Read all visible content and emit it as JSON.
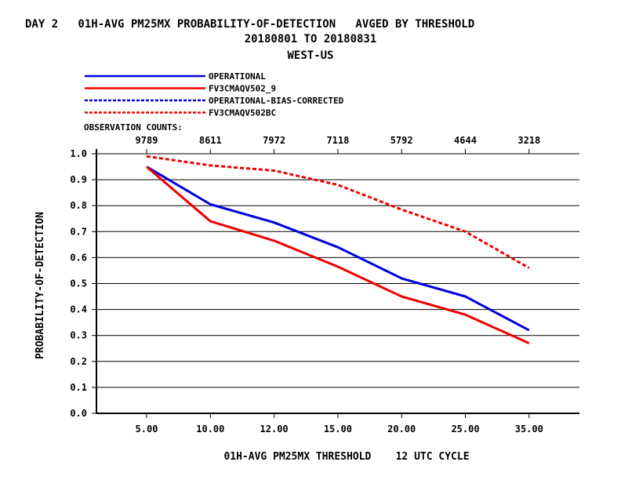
{
  "chart_data": {
    "type": "line",
    "title_lines": [
      "DAY 2   01H-AVG PM25MX PROBABILITY-OF-DETECTION   AVGED BY THRESHOLD",
      "20180801 TO 20180831",
      "WEST-US"
    ],
    "xlabel": "01H-AVG PM25MX THRESHOLD    12 UTC CYCLE",
    "ylabel": "PROBABILITY-OF-DETECTION",
    "categories": [
      "5.00",
      "10.00",
      "12.00",
      "15.00",
      "20.00",
      "25.00",
      "35.00"
    ],
    "yticks": [
      "0.0",
      "0.1",
      "0.2",
      "0.3",
      "0.4",
      "0.5",
      "0.6",
      "0.7",
      "0.8",
      "0.9",
      "1.0"
    ],
    "ylim": [
      0,
      1.0
    ],
    "grid": true,
    "legend_position": "top-left",
    "observation_counts_label": "OBSERVATION COUNTS:",
    "observation_counts": [
      "9789",
      "8611",
      "7972",
      "7118",
      "5792",
      "4644",
      "3218"
    ],
    "series": [
      {
        "name": "OPERATIONAL",
        "color": "#0000dd",
        "dash": "solid",
        "values": [
          0.95,
          0.805,
          0.735,
          0.64,
          0.52,
          0.45,
          0.32
        ]
      },
      {
        "name": "FV3CMAQV502_9",
        "color": "#ee0000",
        "dash": "solid",
        "values": [
          0.95,
          0.74,
          0.665,
          0.565,
          0.45,
          0.38,
          0.27
        ]
      },
      {
        "name": "OPERATIONAL-BIAS-CORRECTED",
        "color": "#0000dd",
        "dash": "dashed",
        "values": [
          null,
          null,
          null,
          null,
          null,
          null,
          null
        ]
      },
      {
        "name": "FV3CMAQV502BC",
        "color": "#ee0000",
        "dash": "dashed",
        "values": [
          0.99,
          0.955,
          0.935,
          0.88,
          0.785,
          0.7,
          0.56
        ]
      }
    ]
  }
}
